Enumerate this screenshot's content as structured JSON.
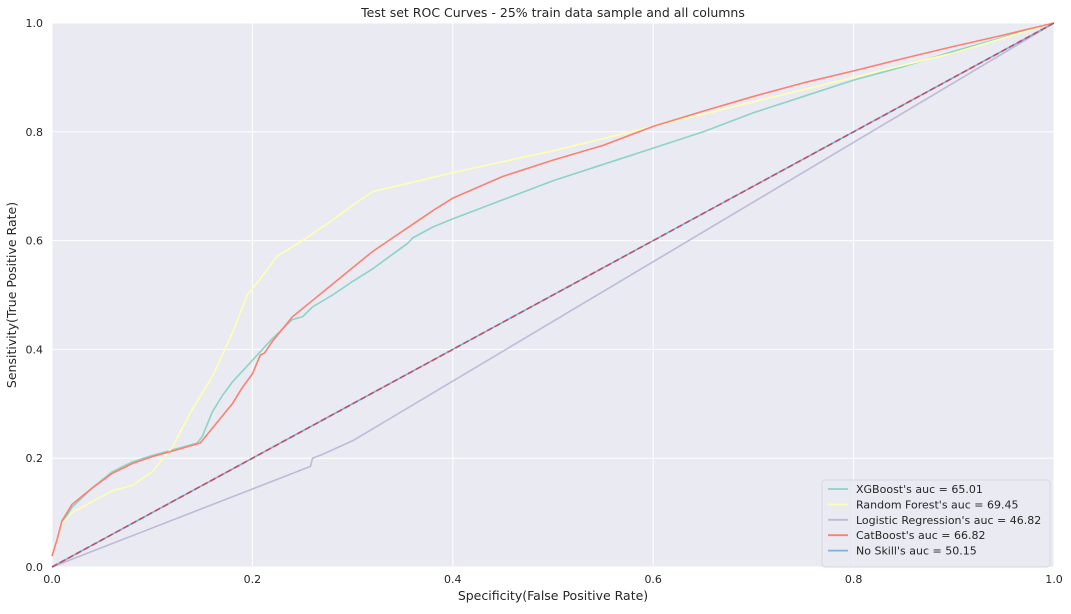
{
  "chart_data": {
    "type": "line",
    "title": "Test set ROC Curves - 25% train data sample and all columns",
    "xlabel": "Specificity(False Positive Rate)",
    "ylabel": "Sensitivity(True Positive Rate)",
    "xlim": [
      0,
      1
    ],
    "ylim": [
      0,
      1
    ],
    "xticks": [
      "0.0",
      "0.2",
      "0.4",
      "0.6",
      "0.8",
      "1.0"
    ],
    "yticks": [
      "0.0",
      "0.2",
      "0.4",
      "0.6",
      "0.8",
      "1.0"
    ],
    "grid": true,
    "legend_position": "lower-right",
    "background_color": "#eaeaf2",
    "grid_color": "#ffffff",
    "series": [
      {
        "name": "XGBoost's auc = 65.01",
        "color": "#8dd3c7",
        "dash": false,
        "points": [
          [
            0,
            0.02
          ],
          [
            0.005,
            0.05
          ],
          [
            0.01,
            0.08
          ],
          [
            0.02,
            0.11
          ],
          [
            0.04,
            0.145
          ],
          [
            0.06,
            0.175
          ],
          [
            0.08,
            0.193
          ],
          [
            0.1,
            0.205
          ],
          [
            0.12,
            0.215
          ],
          [
            0.145,
            0.228
          ],
          [
            0.15,
            0.24
          ],
          [
            0.16,
            0.285
          ],
          [
            0.17,
            0.315
          ],
          [
            0.18,
            0.34
          ],
          [
            0.2,
            0.38
          ],
          [
            0.22,
            0.42
          ],
          [
            0.24,
            0.455
          ],
          [
            0.25,
            0.46
          ],
          [
            0.26,
            0.478
          ],
          [
            0.28,
            0.5
          ],
          [
            0.3,
            0.525
          ],
          [
            0.32,
            0.548
          ],
          [
            0.34,
            0.575
          ],
          [
            0.355,
            0.595
          ],
          [
            0.36,
            0.605
          ],
          [
            0.38,
            0.625
          ],
          [
            0.4,
            0.64
          ],
          [
            0.45,
            0.675
          ],
          [
            0.5,
            0.71
          ],
          [
            0.55,
            0.74
          ],
          [
            0.6,
            0.77
          ],
          [
            0.65,
            0.8
          ],
          [
            0.7,
            0.835
          ],
          [
            0.75,
            0.865
          ],
          [
            0.8,
            0.895
          ],
          [
            0.85,
            0.92
          ],
          [
            0.9,
            0.948
          ],
          [
            0.95,
            0.974
          ],
          [
            1,
            1
          ]
        ]
      },
      {
        "name": "Random Forest's auc = 69.45",
        "color": "#ffffb3",
        "dash": false,
        "points": [
          [
            0,
            0.02
          ],
          [
            0.005,
            0.05
          ],
          [
            0.01,
            0.08
          ],
          [
            0.02,
            0.1
          ],
          [
            0.04,
            0.12
          ],
          [
            0.06,
            0.14
          ],
          [
            0.08,
            0.15
          ],
          [
            0.1,
            0.175
          ],
          [
            0.12,
            0.22
          ],
          [
            0.14,
            0.29
          ],
          [
            0.16,
            0.35
          ],
          [
            0.18,
            0.43
          ],
          [
            0.195,
            0.5
          ],
          [
            0.21,
            0.535
          ],
          [
            0.225,
            0.572
          ],
          [
            0.25,
            0.6
          ],
          [
            0.28,
            0.638
          ],
          [
            0.3,
            0.665
          ],
          [
            0.32,
            0.69
          ],
          [
            0.4,
            0.725
          ],
          [
            0.5,
            0.765
          ],
          [
            0.6,
            0.81
          ],
          [
            0.7,
            0.855
          ],
          [
            0.8,
            0.9
          ],
          [
            0.9,
            0.945
          ],
          [
            1,
            1
          ]
        ]
      },
      {
        "name": "Logistic Regression's auc = 46.82",
        "color": "#bebada",
        "dash": false,
        "points": [
          [
            0,
            0
          ],
          [
            0.258,
            0.185
          ],
          [
            0.26,
            0.2
          ],
          [
            0.27,
            0.207
          ],
          [
            0.3,
            0.232
          ],
          [
            1,
            1
          ]
        ]
      },
      {
        "name": "CatBoost's auc = 66.82",
        "color": "#fb8072",
        "dash": false,
        "points": [
          [
            0,
            0.02
          ],
          [
            0.005,
            0.05
          ],
          [
            0.01,
            0.085
          ],
          [
            0.02,
            0.115
          ],
          [
            0.04,
            0.145
          ],
          [
            0.06,
            0.172
          ],
          [
            0.08,
            0.19
          ],
          [
            0.1,
            0.203
          ],
          [
            0.12,
            0.213
          ],
          [
            0.148,
            0.228
          ],
          [
            0.16,
            0.255
          ],
          [
            0.18,
            0.3
          ],
          [
            0.19,
            0.33
          ],
          [
            0.2,
            0.355
          ],
          [
            0.208,
            0.39
          ],
          [
            0.212,
            0.393
          ],
          [
            0.22,
            0.415
          ],
          [
            0.24,
            0.46
          ],
          [
            0.26,
            0.49
          ],
          [
            0.28,
            0.52
          ],
          [
            0.3,
            0.55
          ],
          [
            0.32,
            0.58
          ],
          [
            0.34,
            0.605
          ],
          [
            0.36,
            0.63
          ],
          [
            0.38,
            0.655
          ],
          [
            0.4,
            0.678
          ],
          [
            0.45,
            0.718
          ],
          [
            0.5,
            0.748
          ],
          [
            0.55,
            0.775
          ],
          [
            0.6,
            0.81
          ],
          [
            0.65,
            0.838
          ],
          [
            0.7,
            0.865
          ],
          [
            0.75,
            0.89
          ],
          [
            0.8,
            0.912
          ],
          [
            0.85,
            0.935
          ],
          [
            0.9,
            0.957
          ],
          [
            0.95,
            0.978
          ],
          [
            1,
            1
          ]
        ]
      },
      {
        "name": "No Skill's auc = 50.15",
        "color": "#80b1d3",
        "dash": false,
        "points": [
          [
            0,
            0
          ],
          [
            1,
            1
          ]
        ]
      },
      {
        "name": "",
        "color": "#c0506a",
        "dash": true,
        "points": [
          [
            0,
            0
          ],
          [
            1,
            1
          ]
        ]
      }
    ]
  }
}
